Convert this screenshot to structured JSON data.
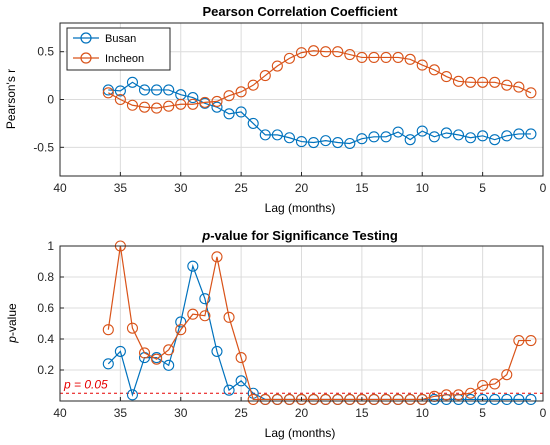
{
  "chart_data": [
    {
      "type": "line",
      "title": "Pearson Correlation Coefficient",
      "xlabel": "Lag (months)",
      "ylabel": "Pearson's r",
      "xlim": [
        40,
        0
      ],
      "ylim": [
        -0.8,
        0.8
      ],
      "x_reversed": true,
      "xticks": [
        40,
        35,
        30,
        25,
        20,
        15,
        10,
        5,
        0
      ],
      "yticks": [
        -0.5,
        0,
        0.5
      ],
      "grid": true,
      "legend": "top-left",
      "x": [
        36,
        35,
        34,
        33,
        32,
        31,
        30,
        29,
        28,
        27,
        26,
        25,
        24,
        23,
        22,
        21,
        20,
        19,
        18,
        17,
        16,
        15,
        14,
        13,
        12,
        11,
        10,
        9,
        8,
        7,
        6,
        5,
        4,
        3,
        2,
        1
      ],
      "series": [
        {
          "name": "Busan",
          "color": "#0072BD",
          "values": [
            0.1,
            0.09,
            0.18,
            0.1,
            0.1,
            0.1,
            0.05,
            0.02,
            -0.04,
            -0.08,
            -0.15,
            -0.13,
            -0.25,
            -0.37,
            -0.37,
            -0.4,
            -0.44,
            -0.45,
            -0.43,
            -0.45,
            -0.46,
            -0.41,
            -0.39,
            -0.39,
            -0.34,
            -0.42,
            -0.33,
            -0.39,
            -0.35,
            -0.37,
            -0.4,
            -0.38,
            -0.42,
            -0.38,
            -0.36,
            -0.36
          ]
        },
        {
          "name": "Incheon",
          "color": "#D95319",
          "values": [
            0.07,
            0.0,
            -0.06,
            -0.08,
            -0.09,
            -0.07,
            -0.05,
            -0.05,
            -0.03,
            -0.02,
            0.04,
            0.08,
            0.15,
            0.25,
            0.35,
            0.43,
            0.49,
            0.51,
            0.5,
            0.5,
            0.47,
            0.44,
            0.44,
            0.44,
            0.44,
            0.42,
            0.36,
            0.31,
            0.24,
            0.19,
            0.18,
            0.18,
            0.18,
            0.15,
            0.13,
            0.07
          ]
        }
      ]
    },
    {
      "type": "line",
      "title": "p-value for Significance Testing",
      "title_italic_part": "p",
      "title_rest": "-value for Significance Testing",
      "xlabel": "Lag (months)",
      "ylabel": "p-value",
      "ylabel_italic_part": "p",
      "ylabel_rest": "-value",
      "xlim": [
        40,
        0
      ],
      "ylim": [
        0,
        1
      ],
      "x_reversed": true,
      "xticks": [
        40,
        35,
        30,
        25,
        20,
        15,
        10,
        5,
        0
      ],
      "yticks": [
        0.2,
        0.4,
        0.6,
        0.8,
        1
      ],
      "grid": true,
      "annotation": {
        "text": "p = 0.05",
        "y": 0.05,
        "color": "#E60000"
      },
      "x": [
        36,
        35,
        34,
        33,
        32,
        31,
        30,
        29,
        28,
        27,
        26,
        25,
        24,
        23,
        22,
        21,
        20,
        19,
        18,
        17,
        16,
        15,
        14,
        13,
        12,
        11,
        10,
        9,
        8,
        7,
        6,
        5,
        4,
        3,
        2,
        1
      ],
      "series": [
        {
          "name": "Busan",
          "color": "#0072BD",
          "values": [
            0.24,
            0.32,
            0.04,
            0.28,
            0.28,
            0.23,
            0.51,
            0.87,
            0.66,
            0.32,
            0.07,
            0.13,
            0.05,
            0.01,
            0.01,
            0.01,
            0.01,
            0.01,
            0.01,
            0.01,
            0.01,
            0.01,
            0.01,
            0.01,
            0.01,
            0.01,
            0.01,
            0.01,
            0.01,
            0.01,
            0.01,
            0.01,
            0.01,
            0.01,
            0.01,
            0.01
          ]
        },
        {
          "name": "Incheon",
          "color": "#D95319",
          "values": [
            0.46,
            1.0,
            0.47,
            0.31,
            0.27,
            0.33,
            0.46,
            0.56,
            0.55,
            0.93,
            0.54,
            0.28,
            0.01,
            0.01,
            0.01,
            0.01,
            0.01,
            0.01,
            0.01,
            0.01,
            0.01,
            0.01,
            0.01,
            0.01,
            0.01,
            0.01,
            0.01,
            0.03,
            0.04,
            0.04,
            0.05,
            0.1,
            0.11,
            0.17,
            0.39,
            0.39
          ]
        }
      ]
    }
  ]
}
